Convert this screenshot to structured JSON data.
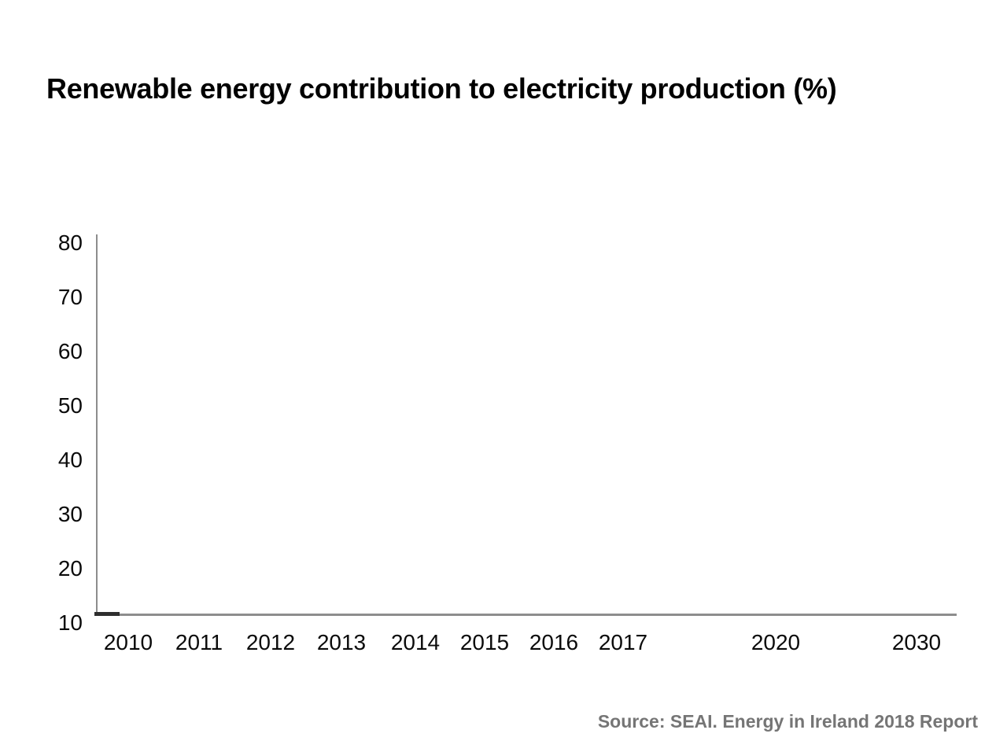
{
  "title": "Renewable energy contribution to electricity production (%)",
  "source_text": "Source: SEAI. Energy in Ireland 2018 Report",
  "chart_data": {
    "type": "line",
    "title": "Renewable energy contribution to electricity production (%)",
    "categories": [
      "2010",
      "2011",
      "2012",
      "2013",
      "2014",
      "2015",
      "2016",
      "2017",
      "2020",
      "2030"
    ],
    "y_ticks": [
      80,
      70,
      60,
      50,
      40,
      30,
      20,
      10
    ],
    "ylim": [
      10,
      80
    ],
    "xlabel": "",
    "ylabel": "",
    "grid": false,
    "legend_position": "none",
    "axis_color": "#8d8d8d",
    "tick_label_color": "#0b0b0b",
    "source_color": "#757575",
    "series": [
      {
        "name": "Renewable energy contribution to electricity production",
        "color": "#2e2e2e",
        "values": [],
        "note": "Frame captured before the animated line is drawn; only a short dark segment is visible at the axis origin near 2010 at the baseline."
      }
    ],
    "source": "Source: SEAI. Energy in Ireland 2018 Report"
  }
}
